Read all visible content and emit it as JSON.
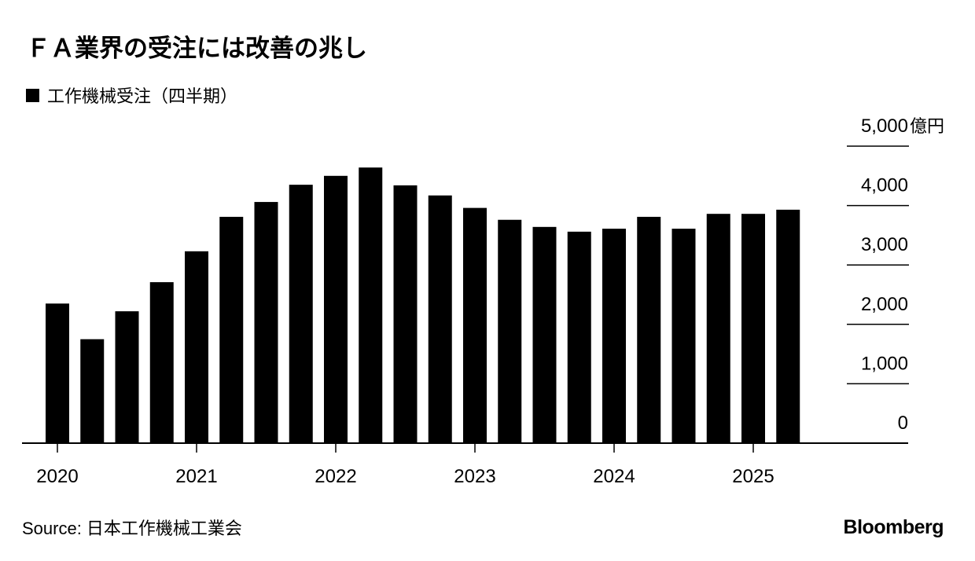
{
  "chart_data": {
    "type": "bar",
    "title": "ＦＡ業界の受注には改善の兆し",
    "series": [
      {
        "name": "工作機械受注（四半期）",
        "color": "#000000",
        "values": [
          2350,
          1750,
          2220,
          2710,
          3230,
          3810,
          4060,
          4350,
          4500,
          4640,
          4340,
          4170,
          3960,
          3760,
          3640,
          3560,
          3610,
          3810,
          3610,
          3860,
          3860,
          3930
        ]
      }
    ],
    "categories": [
      "2020",
      null,
      null,
      null,
      "2021",
      null,
      null,
      null,
      "2022",
      null,
      null,
      null,
      "2023",
      null,
      null,
      null,
      "2024",
      null,
      null,
      null,
      "2025",
      null
    ],
    "ylim": [
      0,
      5000
    ],
    "yticks": [
      0,
      {
        "value": 1000,
        "label": "1,000"
      },
      {
        "value": 2000,
        "label": "2,000"
      },
      {
        "value": 3000,
        "label": "3,000"
      },
      {
        "value": 4000,
        "label": "4,000"
      },
      {
        "value": 5000,
        "label": "5,000"
      }
    ],
    "y_unit": "億円",
    "source": "Source: 日本工作機械工業会",
    "brand": "Bloomberg"
  }
}
